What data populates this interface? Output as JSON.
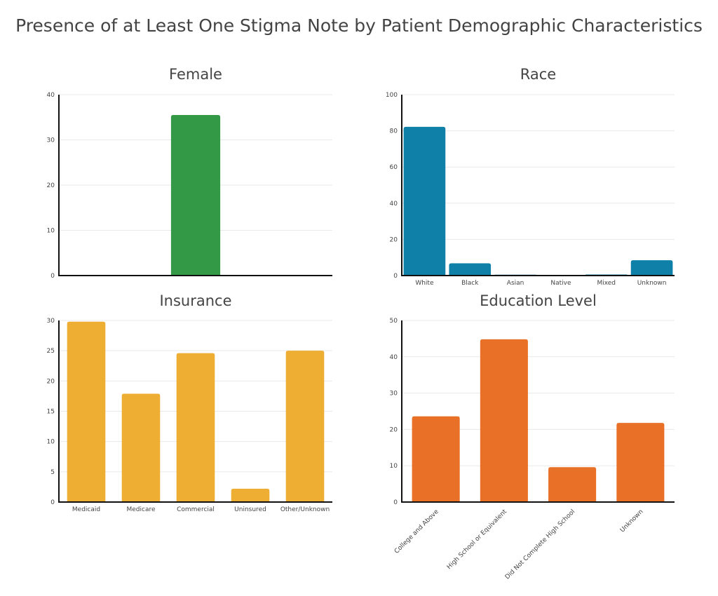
{
  "title": "Presence of at Least One Stigma Note by Patient Demographic Characteristics",
  "chart_data": [
    {
      "type": "bar",
      "title": "Female",
      "categories": [
        ""
      ],
      "values": [
        35.5
      ],
      "ylim": [
        0,
        40
      ],
      "yticks": [
        0,
        10,
        20,
        30,
        40
      ],
      "color": "#339947"
    },
    {
      "type": "bar",
      "title": "Race",
      "categories": [
        "White",
        "Black",
        "Asian",
        "Native",
        "Mixed",
        "Unknown"
      ],
      "values": [
        82.2,
        6.8,
        0.5,
        0.2,
        0.6,
        8.5
      ],
      "ylim": [
        0,
        100
      ],
      "yticks": [
        0,
        20,
        40,
        60,
        80,
        100
      ],
      "color": "#0f80a8"
    },
    {
      "type": "bar",
      "title": "Insurance",
      "categories": [
        "Medicaid",
        "Medicare",
        "Commercial",
        "Uninsured",
        "Other/Unknown"
      ],
      "values": [
        29.8,
        17.9,
        24.6,
        2.2,
        25.0
      ],
      "ylim": [
        0,
        30
      ],
      "yticks": [
        0,
        5,
        10,
        15,
        20,
        25,
        30
      ],
      "color": "#edae33"
    },
    {
      "type": "bar",
      "title": "Education Level",
      "categories": [
        "College and Above",
        "High School or Equivalent",
        "Did Not Complete High School",
        "Unknown"
      ],
      "values": [
        23.6,
        44.8,
        9.6,
        21.8
      ],
      "ylim": [
        0,
        50
      ],
      "yticks": [
        0,
        10,
        20,
        30,
        40,
        50
      ],
      "color": "#e87127",
      "rotate_labels": true
    }
  ]
}
